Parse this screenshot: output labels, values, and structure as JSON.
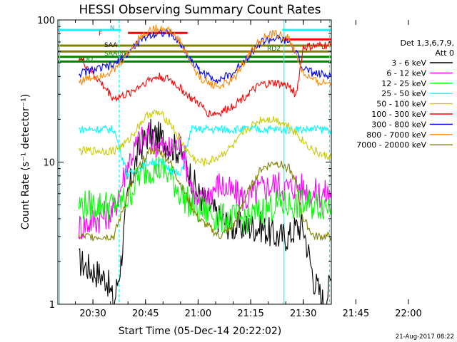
{
  "chart_data": {
    "type": "line",
    "title": "HESSI Observing Summary Count Rates",
    "xlabel": "Start Time (05-Dec-14 20:22:02)",
    "ylabel": "Count Rate (s⁻¹ detector⁻¹)",
    "xlim_minutes": [
      20.0,
      98.0
    ],
    "x_ticks": [
      {
        "label": "20:30",
        "min": 30
      },
      {
        "label": "20:45",
        "min": 45
      },
      {
        "label": "21:00",
        "min": 60
      },
      {
        "label": "21:15",
        "min": 75
      },
      {
        "label": "21:30",
        "min": 90
      },
      {
        "label": "21:45",
        "min": 105
      },
      {
        "label": "22:00",
        "min": 120
      }
    ],
    "y_scale": "log",
    "ylim": [
      1,
      100
    ],
    "y_ticks": [
      {
        "label": "100",
        "value": 100
      },
      {
        "label": "10",
        "value": 10
      },
      {
        "label": "1",
        "value": 1
      }
    ],
    "legend": {
      "placement": "right",
      "header": [
        "Det 1,3,6,7,9,",
        "Att 0"
      ]
    },
    "series": [
      {
        "name": "3 - 6 keV",
        "color": "#000000",
        "x": [
          26,
          34,
          36,
          38,
          40,
          43,
          46,
          49,
          52,
          55,
          58,
          60,
          63,
          66,
          70,
          74,
          78,
          82,
          86,
          88,
          90,
          93,
          96,
          98
        ],
        "values": [
          2.0,
          1.5,
          1.0,
          2.0,
          6,
          12,
          16,
          15,
          13,
          12,
          8,
          6,
          5,
          4,
          3.5,
          3.5,
          3.5,
          3.0,
          3.0,
          3.5,
          3.5,
          1.5,
          1.0,
          1.5
        ]
      },
      {
        "name": "6 - 12 keV",
        "color": "#ff00ff",
        "x": [
          26,
          36,
          40,
          43,
          46,
          49,
          52,
          55,
          58,
          60,
          63,
          66,
          70,
          74,
          78,
          82,
          86,
          88,
          90,
          93,
          96,
          98
        ],
        "values": [
          3.5,
          4.5,
          10,
          14,
          15,
          13,
          12,
          14,
          7,
          5,
          6,
          7,
          6,
          5.5,
          6.5,
          7,
          6.5,
          7,
          6.5,
          6,
          6,
          6
        ]
      },
      {
        "name": "12 - 25 keV",
        "color": "#00ff00",
        "x": [
          26,
          36,
          40,
          43,
          46,
          49,
          52,
          55,
          58,
          60,
          63,
          66,
          70,
          74,
          78,
          82,
          86,
          88,
          90,
          93,
          96,
          98
        ],
        "values": [
          5,
          5,
          5.5,
          8,
          9,
          9,
          8,
          6,
          5,
          4.5,
          4.5,
          4,
          4,
          4,
          4.5,
          5,
          5,
          5,
          5,
          5,
          5,
          5
        ]
      },
      {
        "name": "25 - 50 keV",
        "color": "#00ffff",
        "x": [
          26,
          36,
          40,
          43,
          46,
          49,
          52,
          55,
          58,
          60,
          63,
          66,
          70,
          74,
          78,
          82,
          86,
          88,
          90,
          93,
          96,
          98
        ],
        "values": [
          17,
          17,
          8,
          9,
          10,
          10,
          9,
          8,
          17,
          17,
          17,
          17,
          17,
          17,
          17,
          17,
          17,
          17,
          17,
          17,
          17,
          17
        ]
      },
      {
        "name": "50 - 100 keV",
        "color": "#cccc00",
        "x": [
          26,
          36,
          40,
          43,
          46,
          49,
          52,
          55,
          58,
          60,
          63,
          66,
          70,
          74,
          78,
          82,
          86,
          88,
          90,
          93,
          96,
          98
        ],
        "values": [
          12,
          12,
          14,
          18,
          22,
          22,
          19,
          14,
          11,
          10,
          10,
          11,
          13,
          17,
          20,
          20,
          18,
          16,
          14,
          12,
          11,
          11
        ]
      },
      {
        "name": "100 - 300 keV",
        "color": "#ff0000",
        "x": [
          26,
          36,
          40,
          43,
          46,
          49,
          52,
          55,
          58,
          60,
          63,
          66,
          70,
          74,
          78,
          82,
          86,
          88,
          90,
          93,
          96,
          98
        ],
        "values": [
          55,
          28,
          30,
          34,
          38,
          40,
          38,
          33,
          28,
          26,
          22,
          22,
          25,
          30,
          35,
          36,
          34,
          30,
          64,
          65,
          66,
          66
        ]
      },
      {
        "name": "300 - 800 keV",
        "color": "#0000ff",
        "x": [
          26,
          36,
          40,
          43,
          46,
          49,
          52,
          55,
          58,
          60,
          63,
          66,
          70,
          74,
          78,
          82,
          86,
          88,
          90,
          93,
          96,
          98
        ],
        "values": [
          42,
          48,
          58,
          70,
          78,
          82,
          80,
          68,
          52,
          45,
          40,
          38,
          42,
          55,
          70,
          74,
          70,
          58,
          46,
          42,
          41,
          41
        ]
      },
      {
        "name": "800 - 7000 keV",
        "color": "#ff8800",
        "x": [
          26,
          36,
          40,
          43,
          46,
          49,
          52,
          55,
          58,
          60,
          63,
          66,
          70,
          74,
          78,
          82,
          86,
          88,
          90,
          93,
          96,
          98
        ],
        "values": [
          37,
          44,
          58,
          74,
          84,
          88,
          84,
          70,
          50,
          40,
          36,
          34,
          38,
          55,
          74,
          80,
          74,
          56,
          42,
          37,
          36,
          36
        ]
      },
      {
        "name": "7000 - 20000 keV",
        "color": "#808000",
        "x": [
          26,
          36,
          40,
          43,
          46,
          49,
          52,
          55,
          58,
          60,
          63,
          66,
          70,
          74,
          78,
          82,
          86,
          88,
          90,
          93,
          96,
          98
        ],
        "values": [
          3.0,
          3.0,
          6,
          9,
          12,
          12,
          10,
          7,
          5,
          4,
          3.5,
          3.0,
          3.5,
          6,
          9,
          10,
          9,
          7,
          4,
          3,
          3,
          3
        ]
      }
    ],
    "annotations": [
      {
        "label": "N",
        "color": "#00c8c8"
      },
      {
        "label": "F",
        "color": "#ff0000"
      },
      {
        "label": "SAA",
        "color": "#000000"
      },
      {
        "label": "RDO",
        "color": "#008800"
      },
      {
        "label": "SAA00",
        "color": "#008800"
      },
      {
        "label": "RD2",
        "color": "#008800"
      }
    ],
    "flag_bars": [
      {
        "color": "#00ffff",
        "x": [
          20,
          38
        ],
        "level": 85
      },
      {
        "color": "#00ffff",
        "x": [
          84,
          98
        ],
        "level": 85
      },
      {
        "color": "#ff0000",
        "x": [
          40,
          57
        ],
        "level": 81
      },
      {
        "color": "#ff0000",
        "x": [
          84,
          98
        ],
        "level": 73
      },
      {
        "color": "#808000",
        "x": [
          20,
          98
        ],
        "level": 66
      },
      {
        "color": "#808000",
        "x": [
          20,
          98
        ],
        "level": 60
      },
      {
        "color": "#008000",
        "x": [
          20,
          98
        ],
        "level": 55
      },
      {
        "color": "#008000",
        "x": [
          20,
          98
        ],
        "level": 51
      }
    ],
    "vlines": [
      {
        "x": 20.5,
        "color": "#00ffff"
      },
      {
        "x": 37.5,
        "color": "#00ffff"
      },
      {
        "x": 84.5,
        "color": "#00ffff"
      },
      {
        "x": 97.5,
        "color": "#00ffff"
      }
    ],
    "grid": false
  },
  "footer": {
    "date_stamp": "21-Aug-2017 08:22"
  }
}
